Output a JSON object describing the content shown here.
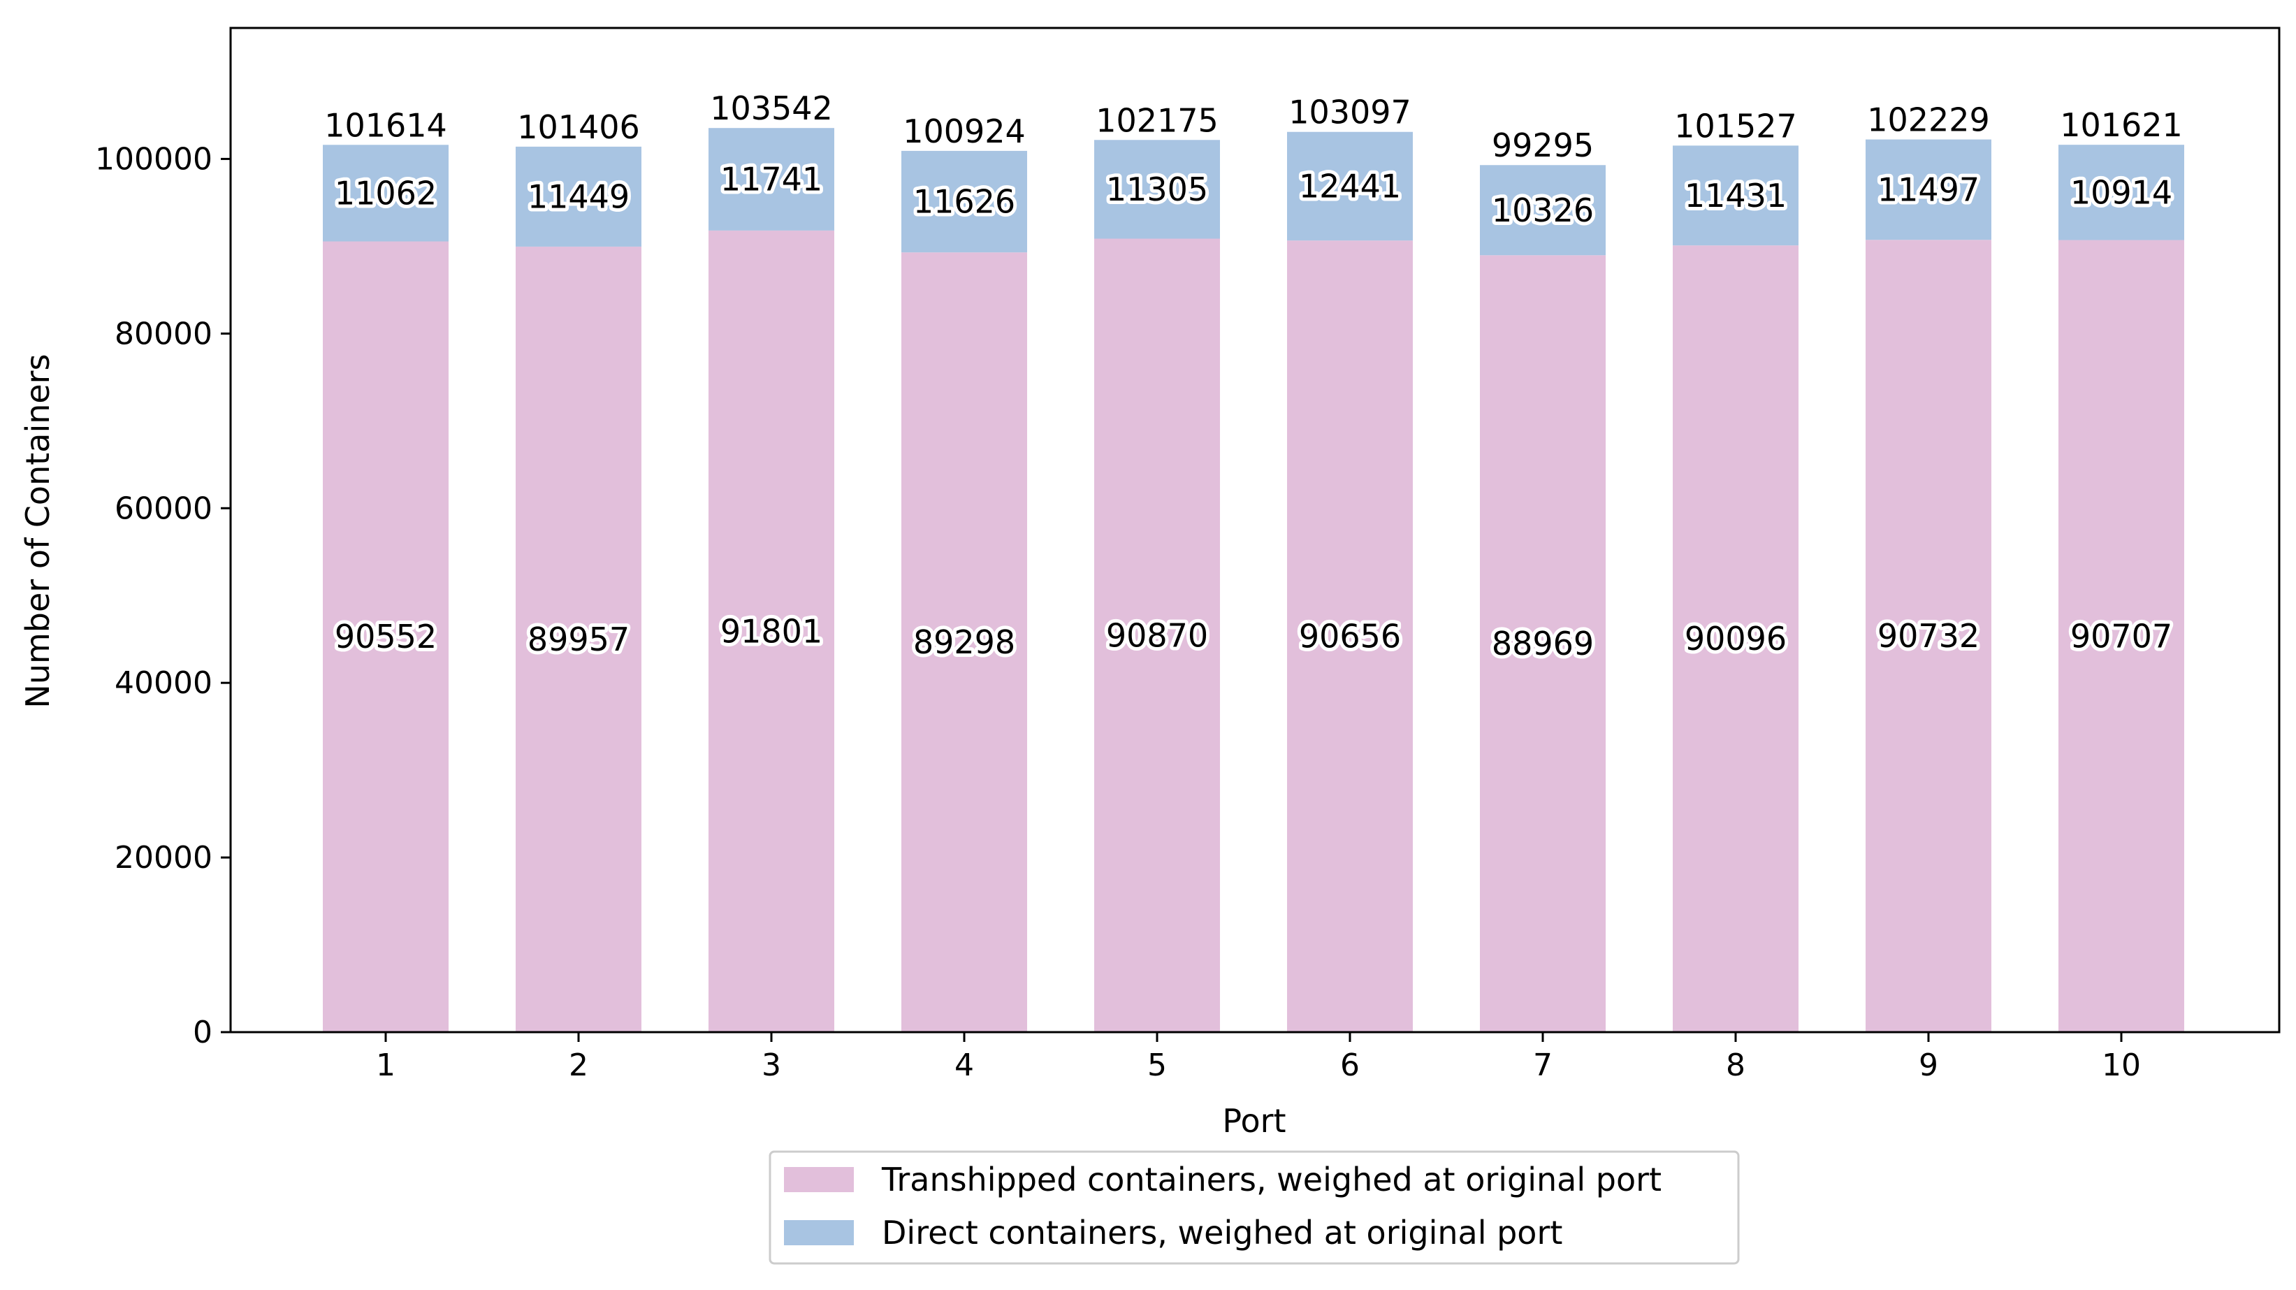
{
  "chart_data": {
    "type": "bar",
    "stacked": true,
    "categories": [
      "1",
      "2",
      "3",
      "4",
      "5",
      "6",
      "7",
      "8",
      "9",
      "10"
    ],
    "series": [
      {
        "name": "Transhipped containers, weighed at original port",
        "color": "#e2bfdb",
        "values": [
          90552,
          89957,
          91801,
          89298,
          90870,
          90656,
          88969,
          90096,
          90732,
          90707
        ]
      },
      {
        "name": "Direct containers, weighed at original port",
        "color": "#a8c4e2",
        "values": [
          11062,
          11449,
          11741,
          11626,
          11305,
          12441,
          10326,
          11431,
          11497,
          10914
        ]
      }
    ],
    "totals": [
      101614,
      101406,
      103542,
      100924,
      102175,
      103097,
      99295,
      101527,
      102229,
      101621
    ],
    "xlabel": "Port",
    "ylabel": "Number of Containers",
    "ylim": [
      0,
      115000
    ],
    "yticks": [
      0,
      20000,
      40000,
      60000,
      80000,
      100000
    ],
    "grid": false,
    "legend_position": "bottom-center"
  }
}
